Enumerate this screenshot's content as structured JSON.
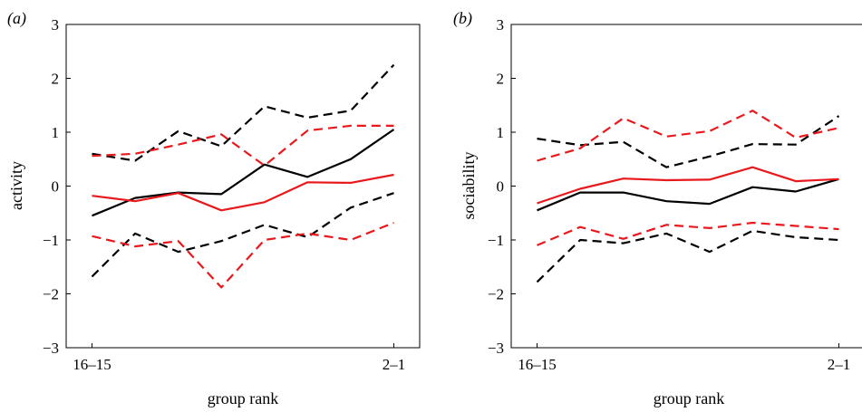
{
  "chart_data": [
    {
      "type": "line",
      "panel_label": "(a)",
      "xlabel": "group rank",
      "ylabel": "activity",
      "x": [
        1,
        2,
        3,
        4,
        5,
        6,
        7,
        8
      ],
      "xticks": [
        1,
        8
      ],
      "xtick_labels": [
        "16–15",
        "2–1"
      ],
      "xlim": [
        0.4,
        8.6
      ],
      "ylim": [
        -3,
        3
      ],
      "yticks": [
        -3,
        -2,
        -1,
        0,
        1,
        2,
        3
      ],
      "ytick_labels": [
        "−3",
        "−2",
        "−1",
        "0",
        "1",
        "2",
        "3"
      ],
      "grid": false,
      "series": [
        {
          "color": "#000000",
          "dash": "solid",
          "values": [
            -0.55,
            -0.22,
            -0.12,
            -0.15,
            0.4,
            0.17,
            0.5,
            1.05
          ]
        },
        {
          "color": "#e8191c",
          "dash": "solid",
          "values": [
            -0.18,
            -0.28,
            -0.13,
            -0.45,
            -0.3,
            0.07,
            0.06,
            0.21
          ]
        },
        {
          "color": "#000000",
          "dash": "dashed",
          "values": [
            0.6,
            0.47,
            1.02,
            0.74,
            1.48,
            1.27,
            1.4,
            2.25
          ]
        },
        {
          "color": "#e8191c",
          "dash": "dashed",
          "values": [
            0.56,
            0.6,
            0.77,
            0.96,
            0.38,
            1.03,
            1.12,
            1.12
          ]
        },
        {
          "color": "#000000",
          "dash": "dashed",
          "values": [
            -1.68,
            -0.88,
            -1.22,
            -1.02,
            -0.72,
            -0.95,
            -0.4,
            -0.13
          ]
        },
        {
          "color": "#e8191c",
          "dash": "dashed",
          "values": [
            -0.93,
            -1.12,
            -1.02,
            -1.88,
            -1.0,
            -0.88,
            -1.0,
            -0.68
          ]
        }
      ]
    },
    {
      "type": "line",
      "panel_label": "(b)",
      "xlabel": "group rank",
      "ylabel": "sociability",
      "x": [
        1,
        2,
        3,
        4,
        5,
        6,
        7,
        8
      ],
      "xticks": [
        1,
        8
      ],
      "xtick_labels": [
        "16–15",
        "2–1"
      ],
      "xlim": [
        0.4,
        8.6
      ],
      "ylim": [
        -3,
        3
      ],
      "yticks": [
        -3,
        -2,
        -1,
        0,
        1,
        2,
        3
      ],
      "ytick_labels": [
        "−3",
        "−2",
        "−1",
        "0",
        "1",
        "2",
        "3"
      ],
      "grid": false,
      "series": [
        {
          "color": "#000000",
          "dash": "solid",
          "values": [
            -0.45,
            -0.12,
            -0.12,
            -0.28,
            -0.33,
            -0.02,
            -0.1,
            0.13
          ]
        },
        {
          "color": "#e8191c",
          "dash": "solid",
          "values": [
            -0.32,
            -0.05,
            0.14,
            0.11,
            0.12,
            0.35,
            0.09,
            0.13
          ]
        },
        {
          "color": "#000000",
          "dash": "dashed",
          "values": [
            0.88,
            0.76,
            0.82,
            0.35,
            0.55,
            0.78,
            0.77,
            1.3
          ]
        },
        {
          "color": "#e8191c",
          "dash": "dashed",
          "values": [
            0.47,
            0.7,
            1.26,
            0.92,
            1.02,
            1.4,
            0.9,
            1.08
          ]
        },
        {
          "color": "#000000",
          "dash": "dashed",
          "values": [
            -1.78,
            -1.0,
            -1.06,
            -0.88,
            -1.22,
            -0.83,
            -0.95,
            -1.0
          ]
        },
        {
          "color": "#e8191c",
          "dash": "dashed",
          "values": [
            -1.1,
            -0.76,
            -0.98,
            -0.72,
            -0.78,
            -0.68,
            -0.74,
            -0.8
          ]
        }
      ]
    }
  ]
}
